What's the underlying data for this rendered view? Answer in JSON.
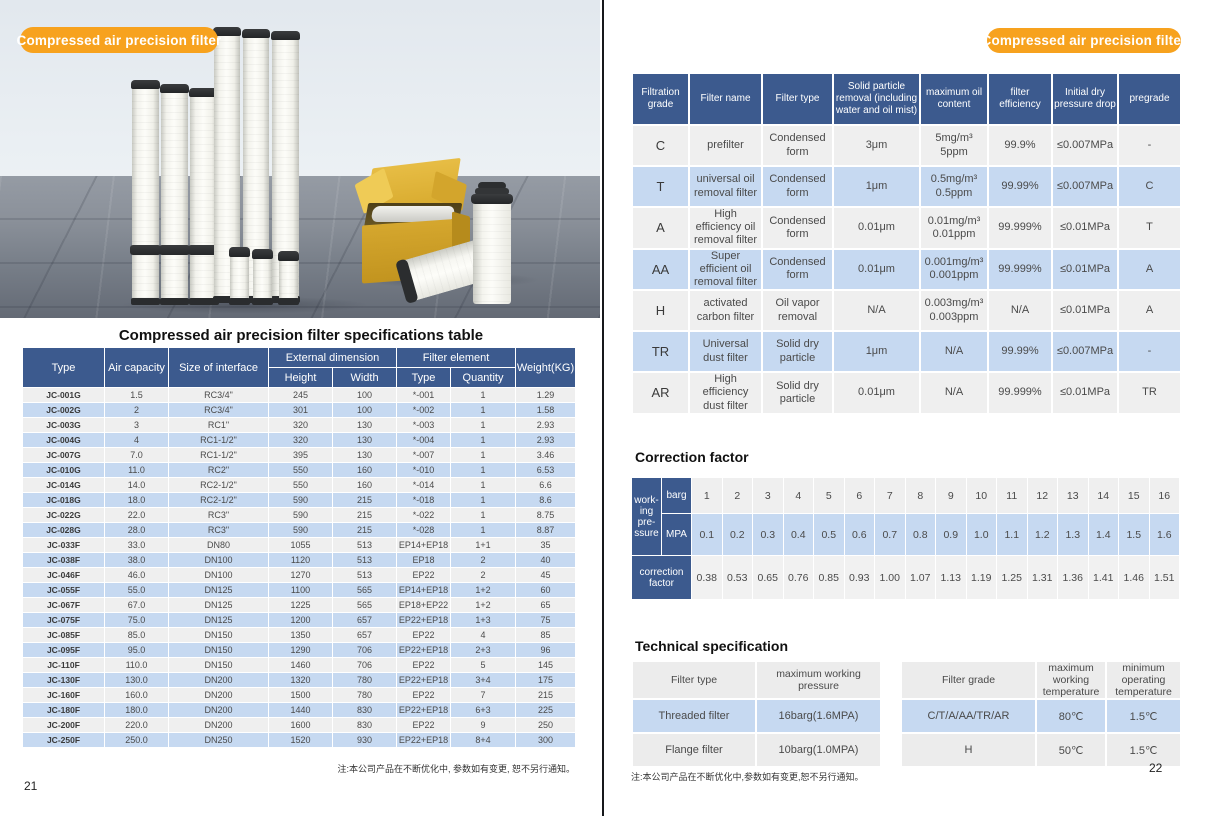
{
  "colors": {
    "header_navy": "#3C5A8E",
    "row_blue": "#c6d9f1",
    "row_gray": "#efefef",
    "accent_orange": "#F7A21E"
  },
  "page_left": {
    "badge": "Compressed air precision filter",
    "table_title": "Compressed air precision filter specifications table",
    "spec_table": {
      "header": {
        "type": "Type",
        "air_capacity": "Air capacity",
        "size": "Size of interface",
        "external_dimension": "External dimension",
        "height": "Height",
        "width": "Width",
        "filter_element": "Filter element",
        "el_type": "Type",
        "quantity": "Quantity",
        "weight": "Weight(KG)"
      },
      "rows": [
        [
          "JC-001G",
          "1.5",
          "RC3/4\"",
          "245",
          "100",
          "*-001",
          "1",
          "1.29"
        ],
        [
          "JC-002G",
          "2",
          "RC3/4\"",
          "301",
          "100",
          "*-002",
          "1",
          "1.58"
        ],
        [
          "JC-003G",
          "3",
          "RC1\"",
          "320",
          "130",
          "*-003",
          "1",
          "2.93"
        ],
        [
          "JC-004G",
          "4",
          "RC1-1/2\"",
          "320",
          "130",
          "*-004",
          "1",
          "2.93"
        ],
        [
          "JC-007G",
          "7.0",
          "RC1-1/2\"",
          "395",
          "130",
          "*-007",
          "1",
          "3.46"
        ],
        [
          "JC-010G",
          "11.0",
          "RC2\"",
          "550",
          "160",
          "*-010",
          "1",
          "6.53"
        ],
        [
          "JC-014G",
          "14.0",
          "RC2-1/2\"",
          "550",
          "160",
          "*-014",
          "1",
          "6.6"
        ],
        [
          "JC-018G",
          "18.0",
          "RC2-1/2\"",
          "590",
          "215",
          "*-018",
          "1",
          "8.6"
        ],
        [
          "JC-022G",
          "22.0",
          "RC3\"",
          "590",
          "215",
          "*-022",
          "1",
          "8.75"
        ],
        [
          "JC-028G",
          "28.0",
          "RC3\"",
          "590",
          "215",
          "*-028",
          "1",
          "8.87"
        ],
        [
          "JC-033F",
          "33.0",
          "DN80",
          "1055",
          "513",
          "EP14+EP18",
          "1+1",
          "35"
        ],
        [
          "JC-038F",
          "38.0",
          "DN100",
          "1120",
          "513",
          "EP18",
          "2",
          "40"
        ],
        [
          "JC-046F",
          "46.0",
          "DN100",
          "1270",
          "513",
          "EP22",
          "2",
          "45"
        ],
        [
          "JC-055F",
          "55.0",
          "DN125",
          "1100",
          "565",
          "EP14+EP18",
          "1+2",
          "60"
        ],
        [
          "JC-067F",
          "67.0",
          "DN125",
          "1225",
          "565",
          "EP18+EP22",
          "1+2",
          "65"
        ],
        [
          "JC-075F",
          "75.0",
          "DN125",
          "1200",
          "657",
          "EP22+EP18",
          "1+3",
          "75"
        ],
        [
          "JC-085F",
          "85.0",
          "DN150",
          "1350",
          "657",
          "EP22",
          "4",
          "85"
        ],
        [
          "JC-095F",
          "95.0",
          "DN150",
          "1290",
          "706",
          "EP22+EP18",
          "2+3",
          "96"
        ],
        [
          "JC-110F",
          "110.0",
          "DN150",
          "1460",
          "706",
          "EP22",
          "5",
          "145"
        ],
        [
          "JC-130F",
          "130.0",
          "DN200",
          "1320",
          "780",
          "EP22+EP18",
          "3+4",
          "175"
        ],
        [
          "JC-160F",
          "160.0",
          "DN200",
          "1500",
          "780",
          "EP22",
          "7",
          "215"
        ],
        [
          "JC-180F",
          "180.0",
          "DN200",
          "1440",
          "830",
          "EP22+EP18",
          "6+3",
          "225"
        ],
        [
          "JC-200F",
          "220.0",
          "DN200",
          "1600",
          "830",
          "EP22",
          "9",
          "250"
        ],
        [
          "JC-250F",
          "250.0",
          "DN250",
          "1520",
          "930",
          "EP22+EP18",
          "8+4",
          "300"
        ]
      ]
    },
    "note": "注:本公司产品在不断优化中, 参数如有变更, 恕不另行通知。",
    "page_number": "21"
  },
  "page_right": {
    "badge": "Compressed air precision filter",
    "grade_table": {
      "headers": [
        "Filtration grade",
        "Filter name",
        "Filter type",
        "Solid particle removal (including water and oil mist)",
        "maximum oil content",
        "filter efficiency",
        "Initial dry pressure drop",
        "pregrade"
      ],
      "rows": [
        [
          "C",
          "prefilter",
          "Condensed form",
          "3μm",
          "5mg/m³\n5ppm",
          "99.9%",
          "≤0.007MPa",
          "-"
        ],
        [
          "T",
          "universal oil removal filter",
          "Condensed form",
          "1μm",
          "0.5mg/m³\n0.5ppm",
          "99.99%",
          "≤0.007MPa",
          "C"
        ],
        [
          "A",
          "High efficiency oil removal filter",
          "Condensed form",
          "0.01μm",
          "0.01mg/m³\n0.01ppm",
          "99.999%",
          "≤0.01MPa",
          "T"
        ],
        [
          "AA",
          "Super efficient oil removal filter",
          "Condensed form",
          "0.01μm",
          "0.001mg/m³\n0.001ppm",
          "99.999%",
          "≤0.01MPa",
          "A"
        ],
        [
          "H",
          "activated carbon filter",
          "Oil vapor removal",
          "N/A",
          "0.003mg/m³\n0.003ppm",
          "N/A",
          "≤0.01MPa",
          "A"
        ],
        [
          "TR",
          "Universal dust filter",
          "Solid dry particle",
          "1μm",
          "N/A",
          "99.99%",
          "≤0.007MPa",
          "-"
        ],
        [
          "AR",
          "High efficiency dust filter",
          "Solid dry particle",
          "0.01μm",
          "N/A",
          "99.999%",
          "≤0.01MPa",
          "TR"
        ]
      ]
    },
    "correction": {
      "title": "Correction factor",
      "row_label": "work-\ning\npre-\nssure",
      "barg_label": "barg",
      "mpa_label": "MPA",
      "factor_label": "correction\nfactor",
      "barg": [
        "1",
        "2",
        "3",
        "4",
        "5",
        "6",
        "7",
        "8",
        "9",
        "10",
        "11",
        "12",
        "13",
        "14",
        "15",
        "16"
      ],
      "mpa": [
        "0.1",
        "0.2",
        "0.3",
        "0.4",
        "0.5",
        "0.6",
        "0.7",
        "0.8",
        "0.9",
        "1.0",
        "1.1",
        "1.2",
        "1.3",
        "1.4",
        "1.5",
        "1.6"
      ],
      "factors": [
        "0.38",
        "0.53",
        "0.65",
        "0.76",
        "0.85",
        "0.93",
        "1.00",
        "1.07",
        "1.13",
        "1.19",
        "1.25",
        "1.31",
        "1.36",
        "1.41",
        "1.46",
        "1.51"
      ]
    },
    "technical": {
      "title": "Technical specification",
      "pressure_table": {
        "headers": [
          "Filter type",
          "maximum working\npressure"
        ],
        "rows": [
          [
            "Threaded filter",
            "16barg(1.6MPA)"
          ],
          [
            "Flange filter",
            "10barg(1.0MPA)"
          ]
        ]
      },
      "temperature_table": {
        "headers": [
          "Filter grade",
          "maximum\nworking\ntemperature",
          "minimum\noperating\ntemperature"
        ],
        "rows": [
          [
            "C/T/A/AA/TR/AR",
            "80℃",
            "1.5℃"
          ],
          [
            "H",
            "50℃",
            "1.5℃"
          ]
        ]
      }
    },
    "note": "注:本公司产品在不断优化中,参数如有变更,恕不另行通知。",
    "page_number": "22"
  }
}
